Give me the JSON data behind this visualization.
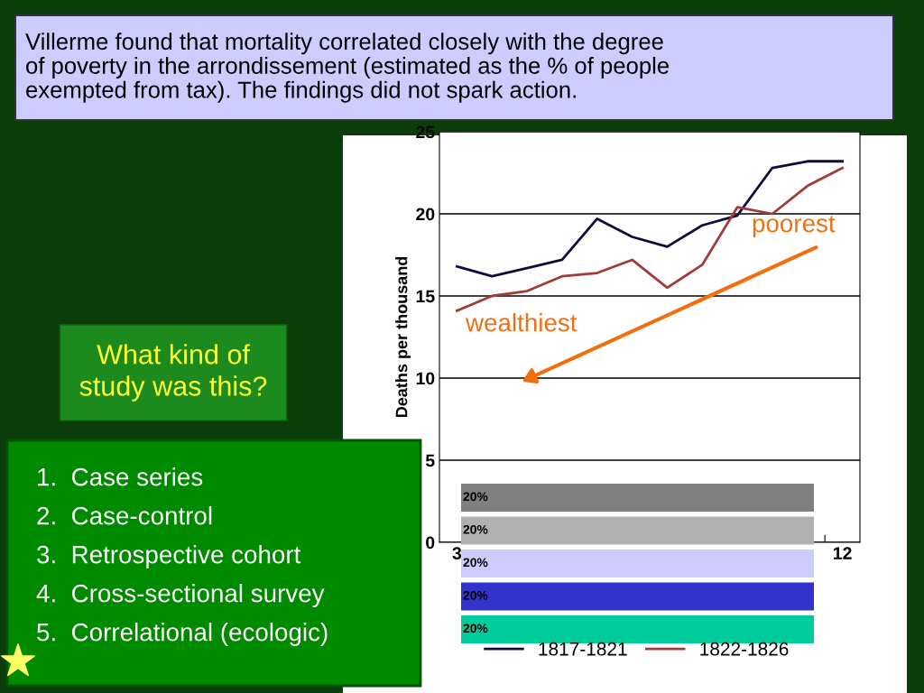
{
  "chart_data": {
    "type": "line",
    "ylabel": "Deaths per thousand",
    "categories": [
      "3",
      null,
      null,
      null,
      null,
      null,
      null,
      null,
      null,
      null,
      null,
      "12"
    ],
    "series": [
      {
        "name": "1817-1821",
        "color": "#0d0d3d",
        "values": [
          16.8,
          16.2,
          16.7,
          17.2,
          19.7,
          18.6,
          18.0,
          19.3,
          19.9,
          22.8,
          23.2,
          23.2
        ]
      },
      {
        "name": "1822-1826",
        "color": "#a33a3a",
        "values": [
          14.1,
          15.0,
          15.3,
          16.2,
          16.4,
          17.2,
          15.5,
          16.9,
          20.4,
          20.0,
          21.7,
          22.8
        ]
      }
    ],
    "ylim": [
      0,
      25
    ],
    "yticks": [
      0,
      5,
      10,
      15,
      20,
      25
    ],
    "grid": "y",
    "legend": "bottom",
    "marker": "none",
    "line_style": "solid",
    "annotations": [
      "Villerme found that mortality correlated closely with the degree\nof poverty in the arrondissement (estimated as the % of people\nexempted from tax). The findings did not spark action.",
      "What kind of\nstudy was this?",
      "1.  Case series",
      "2.  Case-control",
      "3.  Retrospective cohort",
      "4.  Cross-sectional survey",
      "5.  Correlational (ecologic)",
      "poorest",
      "wealthiest",
      "20%",
      "20%",
      "20%",
      "20%",
      "20%"
    ]
  }
}
